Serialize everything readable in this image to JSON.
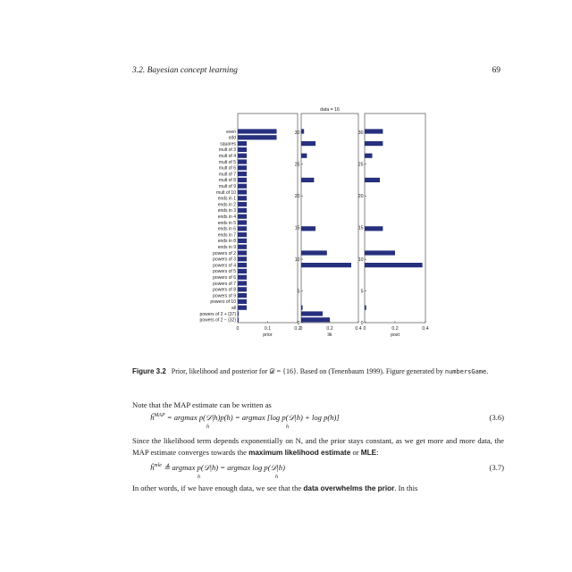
{
  "header": {
    "section": "3.2.  Bayesian concept learning",
    "page_number": "69"
  },
  "chart_data": {
    "type": "bar",
    "orientation": "horizontal",
    "hypotheses": [
      "even",
      "odd",
      "squares",
      "mult of 3",
      "mult of 4",
      "mult of 5",
      "mult of 6",
      "mult of 7",
      "mult of 8",
      "mult of 9",
      "mult of 10",
      "ends in 1",
      "ends in 2",
      "ends in 3",
      "ends in 4",
      "ends in 5",
      "ends in 6",
      "ends in 7",
      "ends in 8",
      "ends in 9",
      "powers of 2",
      "powers of 3",
      "powers of 4",
      "powers of 5",
      "powers of 6",
      "powers of 7",
      "powers of 8",
      "powers of 9",
      "powers of 10",
      "all",
      "powers of 2 + {37}",
      "powers of 2 − {32}"
    ],
    "panels": [
      {
        "xlabel": "prior",
        "xlim": [
          0,
          0.2
        ],
        "xticks": [
          "0",
          "0.1",
          "0.2"
        ],
        "values": [
          0.13,
          0.13,
          0.03,
          0.03,
          0.03,
          0.03,
          0.03,
          0.03,
          0.03,
          0.03,
          0.03,
          0.03,
          0.03,
          0.03,
          0.03,
          0.03,
          0.03,
          0.03,
          0.03,
          0.03,
          0.03,
          0.03,
          0.03,
          0.03,
          0.03,
          0.03,
          0.03,
          0.03,
          0.03,
          0.03,
          0.003,
          0.003
        ]
      },
      {
        "xlabel": "lik",
        "title": "data = 16",
        "xlim": [
          0,
          0.4
        ],
        "ylim": [
          0,
          33
        ],
        "xticks": [
          "0",
          "0.2",
          "0.4"
        ],
        "yticks": [
          "0",
          "5",
          "10",
          "15",
          "20",
          "25",
          "30"
        ],
        "values": [
          0.02,
          0,
          0.1,
          0,
          0.04,
          0,
          0,
          0,
          0.09,
          0,
          0,
          0,
          0,
          0,
          0,
          0,
          0.1,
          0,
          0,
          0,
          0.18,
          0,
          0.35,
          0,
          0,
          0,
          0,
          0,
          0,
          0.01,
          0.15,
          0.2
        ]
      },
      {
        "xlabel": "post",
        "xlim": [
          0,
          0.4
        ],
        "ylim": [
          0,
          33
        ],
        "xticks": [
          "0",
          "0.2",
          "0.4"
        ],
        "yticks": [
          "0",
          "5",
          "10",
          "15",
          "20",
          "25",
          "30"
        ],
        "values": [
          0.12,
          0,
          0.12,
          0,
          0.05,
          0,
          0,
          0,
          0.1,
          0,
          0,
          0,
          0,
          0,
          0,
          0,
          0.12,
          0,
          0,
          0,
          0.2,
          0,
          0.38,
          0,
          0,
          0,
          0,
          0,
          0,
          0.01,
          0,
          0
        ]
      }
    ],
    "bar_color": "#27307f"
  },
  "caption": {
    "label": "Figure 3.2",
    "text_a": "Prior, likelihood and posterior for 𝒟 = {16}. Based on (Tenenbaum 1999). Figure generated by ",
    "code": "numbersGame",
    "text_b": "."
  },
  "body": {
    "p1": "Note that the MAP estimate can be written as",
    "eq1_lhs": "ĥ",
    "eq1_sup": "MAP",
    "eq1_rhs": "= argmax p(𝒟|h)p(h) = argmax [log p(𝒟|h) + log p(h)]",
    "eq1_sub1": "h",
    "eq1_sub2": "h",
    "eq1_num": "(3.6)",
    "p2_a": "Since the likelihood term depends exponentially on N, and the prior stays constant, as we get more and more data, the MAP estimate converges towards the ",
    "p2_bold1": "maximum likelihood estimate",
    "p2_b": " or ",
    "p2_bold2": "MLE",
    "p2_c": ":",
    "eq2_lhs": "ĥ",
    "eq2_sup": "mle",
    "eq2_rhs": "≜ argmax p(𝒟|h) = argmax log p(𝒟|h)",
    "eq2_sub1": "h",
    "eq2_sub2": "h",
    "eq2_num": "(3.7)",
    "p3_a": "In other words, if we have enough data, we see that the ",
    "p3_bold": "data overwhelms the prior",
    "p3_b": ". In this"
  }
}
